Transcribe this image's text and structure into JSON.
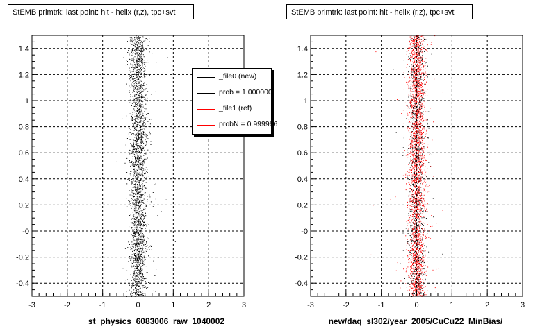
{
  "chart_data": [
    {
      "type": "scatter",
      "title": "StEMB primtrk: last point: hit - helix (r,z), tpc+svt",
      "xlabel": "st_physics_6083006_raw_1040002",
      "ylabel": "",
      "xlim": [
        -3,
        3
      ],
      "ylim": [
        -0.5,
        1.5
      ],
      "x_ticks": [
        "-3",
        "-2",
        "-1",
        "0",
        "1",
        "2",
        "3"
      ],
      "y_ticks": [
        "-0.4",
        "-0.2",
        "-0",
        "0.2",
        "0.4",
        "0.6",
        "0.8",
        "1",
        "1.2",
        "1.4"
      ],
      "grid": true,
      "legend_position": "top-right",
      "series": [
        {
          "name": "_file0 (new)",
          "color": "#000000",
          "x_center": 0.0,
          "x_spread": 0.12,
          "y_range": [
            -0.5,
            1.5
          ]
        }
      ],
      "legend": [
        {
          "label": "_file0 (new)",
          "color": "#000000"
        },
        {
          "label": "prob = 1.000000",
          "color": "#000000"
        },
        {
          "label": "_file1 (ref)",
          "color": "#ff0000"
        },
        {
          "label": "probN = 0.999966",
          "color": "#ff0000"
        }
      ]
    },
    {
      "type": "scatter",
      "title": "StEMB primtrk: last point: hit - helix (r,z), tpc+svt",
      "xlabel": "new/daq_sl302/year_2005/CuCu22_MinBias/",
      "ylabel": "",
      "xlim": [
        -3,
        3
      ],
      "ylim": [
        -0.5,
        1.5
      ],
      "x_ticks": [
        "-3",
        "-2",
        "-1",
        "0",
        "1",
        "2",
        "3"
      ],
      "y_ticks": [
        "-0.4",
        "-0.2",
        "-0",
        "0.2",
        "0.4",
        "0.6",
        "0.8",
        "1",
        "1.2",
        "1.4"
      ],
      "grid": true,
      "series": [
        {
          "name": "_file1 (ref)",
          "color": "#ff0000",
          "x_center": 0.0,
          "x_spread": 0.12,
          "y_range": [
            -0.5,
            1.5
          ]
        },
        {
          "name": "_file0 (new)",
          "color": "#000000",
          "x_center": 0.0,
          "x_spread": 0.12,
          "y_range": [
            -0.5,
            1.5
          ]
        }
      ]
    }
  ]
}
